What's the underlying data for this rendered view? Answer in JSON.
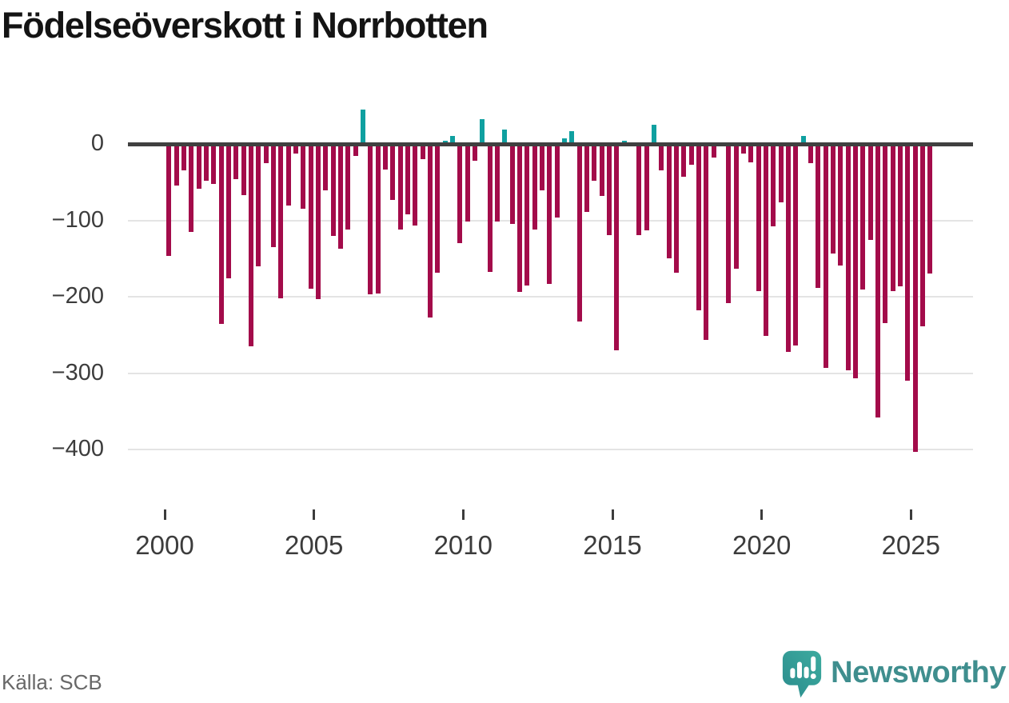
{
  "title": "Födelseöverskott i Norrbotten",
  "source": {
    "label": "Källa: SCB"
  },
  "branding": {
    "name": "Newsworthy",
    "icon": "newsworthy-bubble-barchart-icon"
  },
  "colors": {
    "negative_bar": "#a30b4a",
    "positive_bar": "#0fa0a0",
    "axis_line": "#404040",
    "gridline": "#e4e4e4",
    "tick_label": "#3c3c3c",
    "source_text": "#686868",
    "brand_teal": "#3f8e8e"
  },
  "chart_data": {
    "type": "bar",
    "title": "Födelseöverskott i Norrbotten",
    "x_unit": "quarter",
    "start": "2000 Q1",
    "end": "2025 Q3",
    "values": [
      -146,
      -54,
      -35,
      -115,
      -59,
      -48,
      -52,
      -235,
      -176,
      -46,
      -67,
      -265,
      -160,
      -25,
      -135,
      -202,
      -81,
      -12,
      -85,
      -189,
      -203,
      -61,
      -120,
      -137,
      -112,
      -16,
      45,
      -197,
      -196,
      -33,
      -73,
      -112,
      -92,
      -107,
      -20,
      -227,
      -168,
      4,
      10,
      -130,
      -101,
      -22,
      33,
      -167,
      -101,
      19,
      -105,
      -194,
      -185,
      -112,
      -61,
      -183,
      -96,
      7,
      17,
      -232,
      -89,
      -48,
      -68,
      -119,
      -270,
      4,
      -3,
      -119,
      -113,
      25,
      -34,
      -150,
      -168,
      -43,
      -27,
      -218,
      -256,
      -18,
      0,
      -208,
      -163,
      -13,
      -24,
      -192,
      -251,
      -108,
      -76,
      -272,
      -264,
      10,
      -25,
      -188,
      -293,
      -143,
      -159,
      -296,
      -307,
      -190,
      -126,
      -358,
      -234,
      -192,
      -186,
      -310,
      -403,
      -239,
      -169
    ],
    "xticks": [
      2000,
      2005,
      2010,
      2015,
      2020,
      2025
    ],
    "yticks": [
      0,
      -100,
      -200,
      -300,
      -400
    ],
    "ytick_labels": [
      "0",
      "−100",
      "−200",
      "−300",
      "−400"
    ],
    "ylim": [
      -420,
      50
    ],
    "grid": "horizontal",
    "legend": "none"
  }
}
